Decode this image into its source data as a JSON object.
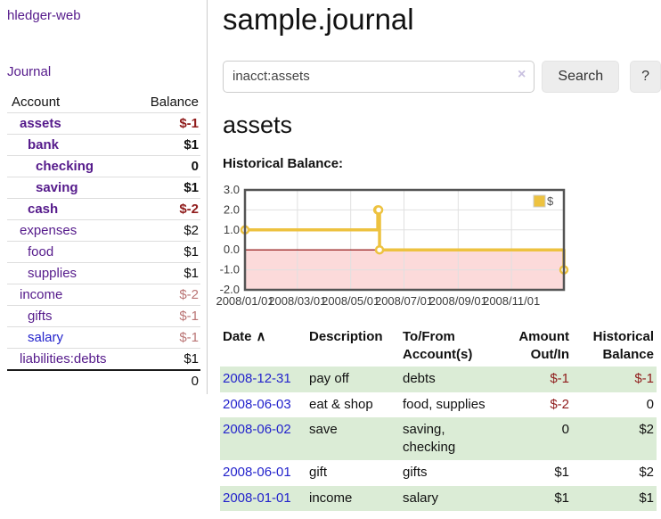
{
  "colors": {
    "purple": "#551A8B",
    "blue": "#2323CC",
    "neg": "#8F1B1B",
    "negl": "#BA7575",
    "stripe": "#DBECD6",
    "gold": "#EDC240"
  },
  "sidebar": {
    "brand": "hledger-web",
    "nav_journal": "Journal",
    "accounts_table": {
      "col_account": "Account",
      "col_balance": "Balance",
      "rows": [
        {
          "name": "assets",
          "balance": "$-1"
        },
        {
          "name": "bank",
          "balance": "$1"
        },
        {
          "name": "checking",
          "balance": "0"
        },
        {
          "name": "saving",
          "balance": "$1"
        },
        {
          "name": "cash",
          "balance": "$-2"
        },
        {
          "name": "expenses",
          "balance": "$2"
        },
        {
          "name": "food",
          "balance": "$1"
        },
        {
          "name": "supplies",
          "balance": "$1"
        },
        {
          "name": "income",
          "balance": "$-2"
        },
        {
          "name": "gifts",
          "balance": "$-1"
        },
        {
          "name": "salary",
          "balance": "$-1"
        },
        {
          "name": "liabilities:debts",
          "balance": "$1"
        }
      ],
      "total": "0"
    }
  },
  "main": {
    "title": "sample.journal",
    "search": {
      "value": "inacct:assets",
      "clear_icon": "×",
      "button_label": "Search",
      "help_label": "?"
    },
    "account_heading": "assets",
    "chart_label": "Historical Balance:",
    "register": {
      "sort_indicator": "∧",
      "headers": [
        {
          "l1": "Date",
          "l2": ""
        },
        {
          "l1": "Description",
          "l2": ""
        },
        {
          "l1": "To/From",
          "l2": "Account(s)"
        },
        {
          "l1": "Amount",
          "l2": "Out/In"
        },
        {
          "l1": "Historical",
          "l2": "Balance"
        }
      ],
      "rows": [
        {
          "date": "2008-12-31",
          "desc": "pay off",
          "accounts": "debts",
          "amount": "$-1",
          "balance": "$-1"
        },
        {
          "date": "2008-06-03",
          "desc": "eat & shop",
          "accounts": "food, supplies",
          "amount": "$-2",
          "balance": "0"
        },
        {
          "date": "2008-06-02",
          "desc": "save",
          "accounts": "saving, checking",
          "amount": "0",
          "balance": "$2"
        },
        {
          "date": "2008-06-01",
          "desc": "gift",
          "accounts": "gifts",
          "amount": "$1",
          "balance": "$2"
        },
        {
          "date": "2008-01-01",
          "desc": "income",
          "accounts": "salary",
          "amount": "$1",
          "balance": "$1"
        }
      ]
    }
  },
  "chart_data": {
    "type": "line",
    "step": true,
    "title": "Historical Balance",
    "series": [
      {
        "name": "$",
        "color": "#EDC240",
        "points": [
          [
            "2008/01/01",
            1
          ],
          [
            "2008/06/01",
            2
          ],
          [
            "2008/06/02",
            2
          ],
          [
            "2008/06/03",
            0
          ],
          [
            "2008/12/31",
            -1
          ]
        ]
      }
    ],
    "x_range": [
      "2008/01/01",
      "2008/12/31"
    ],
    "x_ticks": [
      "2008/01/01",
      "2008/03/01",
      "2008/05/01",
      "2008/07/01",
      "2008/09/01",
      "2008/11/01"
    ],
    "y_ticks": [
      {
        "v": 3,
        "label": "3.0"
      },
      {
        "v": 2,
        "label": "2.0"
      },
      {
        "v": 1,
        "label": "1.0"
      },
      {
        "v": 0,
        "label": "0.0"
      },
      {
        "v": -1,
        "label": "-1.0"
      },
      {
        "v": -2,
        "label": "-2.0"
      }
    ],
    "ylim": [
      -2,
      3
    ],
    "grid": true,
    "grid_color": "#E0E0E0",
    "border_color": "#545454",
    "zero_line_color": "#8B0000",
    "negative_region_color": "#FCDADA",
    "legend_position": "top-right",
    "xlabel": "",
    "ylabel": ""
  }
}
